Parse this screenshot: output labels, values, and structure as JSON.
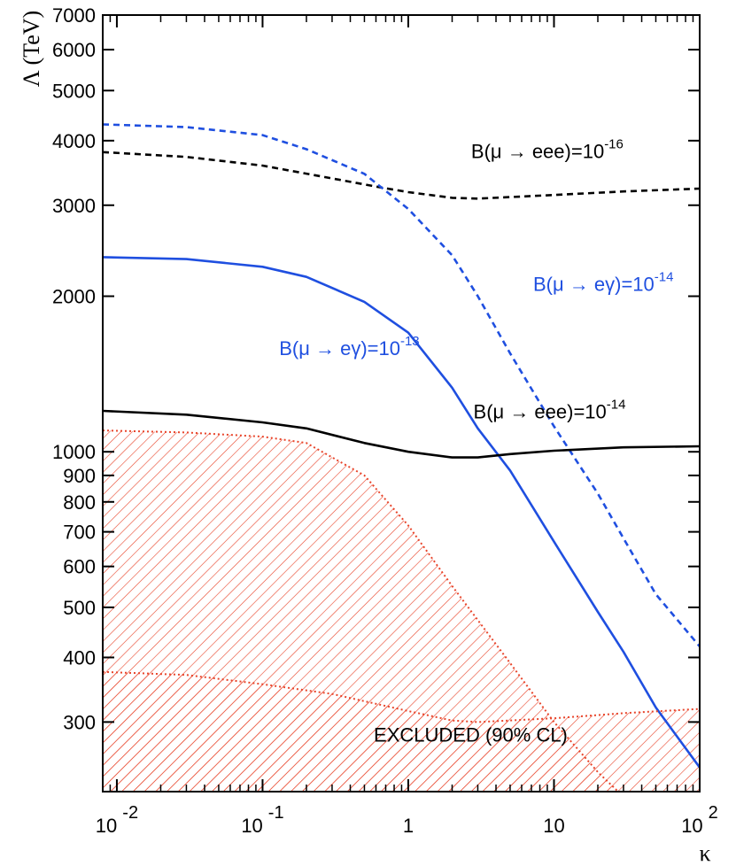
{
  "chart_data": {
    "type": "line",
    "xlabel": "κ",
    "ylabel": "Λ (TeV)",
    "xscale": "log",
    "yscale": "log",
    "xlim": [
      0.008,
      100
    ],
    "ylim": [
      220,
      7000
    ],
    "grid": false,
    "x_ticks": [
      {
        "value": 0.01,
        "base": "10",
        "exp": "-2"
      },
      {
        "value": 0.1,
        "base": "10",
        "exp": "-1"
      },
      {
        "value": 1,
        "base": "1",
        "exp": ""
      },
      {
        "value": 10,
        "base": "10",
        "exp": ""
      },
      {
        "value": 100,
        "base": "10",
        "exp": "2"
      }
    ],
    "y_ticks": [
      {
        "value": 300,
        "label": "300"
      },
      {
        "value": 400,
        "label": "400"
      },
      {
        "value": 500,
        "label": "500"
      },
      {
        "value": 600,
        "label": "600"
      },
      {
        "value": 700,
        "label": "700"
      },
      {
        "value": 800,
        "label": "800"
      },
      {
        "value": 900,
        "label": "900"
      },
      {
        "value": 1000,
        "label": "1000"
      },
      {
        "value": 2000,
        "label": "2000"
      },
      {
        "value": 3000,
        "label": "3000"
      },
      {
        "value": 4000,
        "label": "4000"
      },
      {
        "value": 5000,
        "label": "5000"
      },
      {
        "value": 6000,
        "label": "6000"
      },
      {
        "value": 7000,
        "label": "7000"
      }
    ],
    "series": [
      {
        "name": "B(μ → eee)=10⁻¹⁶",
        "color": "#000000",
        "style": "dashed",
        "points": [
          [
            0.008,
            3800
          ],
          [
            0.03,
            3720
          ],
          [
            0.1,
            3580
          ],
          [
            0.3,
            3380
          ],
          [
            0.6,
            3260
          ],
          [
            1,
            3180
          ],
          [
            2,
            3100
          ],
          [
            3,
            3090
          ],
          [
            10,
            3140
          ],
          [
            30,
            3190
          ],
          [
            100,
            3230
          ]
        ]
      },
      {
        "name": "B(μ → eγ)=10⁻¹⁴",
        "color": "#1f4fe0",
        "style": "dashed",
        "points": [
          [
            0.008,
            4300
          ],
          [
            0.03,
            4250
          ],
          [
            0.1,
            4100
          ],
          [
            0.2,
            3850
          ],
          [
            0.5,
            3450
          ],
          [
            1,
            2950
          ],
          [
            2,
            2400
          ],
          [
            3,
            2000
          ],
          [
            5,
            1550
          ],
          [
            10,
            1120
          ],
          [
            20,
            830
          ],
          [
            30,
            680
          ],
          [
            50,
            530
          ],
          [
            100,
            420
          ]
        ]
      },
      {
        "name": "B(μ → eγ)=10⁻¹³",
        "color": "#1f4fe0",
        "style": "solid",
        "points": [
          [
            0.008,
            2380
          ],
          [
            0.03,
            2360
          ],
          [
            0.1,
            2280
          ],
          [
            0.2,
            2180
          ],
          [
            0.5,
            1950
          ],
          [
            1,
            1700
          ],
          [
            2,
            1330
          ],
          [
            3,
            1110
          ],
          [
            5,
            920
          ],
          [
            10,
            670
          ],
          [
            20,
            490
          ],
          [
            30,
            410
          ],
          [
            50,
            320
          ],
          [
            100,
            245
          ]
        ]
      },
      {
        "name": "B(μ → eee)=10⁻¹⁴",
        "color": "#000000",
        "style": "solid",
        "points": [
          [
            0.008,
            1200
          ],
          [
            0.03,
            1180
          ],
          [
            0.1,
            1140
          ],
          [
            0.2,
            1110
          ],
          [
            0.5,
            1040
          ],
          [
            1,
            1000
          ],
          [
            2,
            975
          ],
          [
            3,
            975
          ],
          [
            5,
            990
          ],
          [
            10,
            1005
          ],
          [
            30,
            1020
          ],
          [
            100,
            1025
          ]
        ]
      },
      {
        "name": "excluded-boundary-upper",
        "color": "#e8442a",
        "style": "dotted",
        "points": [
          [
            0.008,
            1100
          ],
          [
            0.03,
            1090
          ],
          [
            0.1,
            1070
          ],
          [
            0.2,
            1040
          ],
          [
            0.5,
            900
          ],
          [
            1,
            720
          ],
          [
            2,
            550
          ],
          [
            5,
            390
          ],
          [
            10,
            300
          ],
          [
            20,
            240
          ],
          [
            30,
            215
          ]
        ]
      },
      {
        "name": "excluded-boundary-lower",
        "color": "#e8442a",
        "style": "dotted",
        "points": [
          [
            0.008,
            375
          ],
          [
            0.03,
            370
          ],
          [
            0.1,
            355
          ],
          [
            0.3,
            340
          ],
          [
            1,
            315
          ],
          [
            2,
            302
          ],
          [
            3,
            300
          ],
          [
            10,
            305
          ],
          [
            30,
            312
          ],
          [
            100,
            318
          ]
        ]
      }
    ],
    "annotations": [
      {
        "id": "eee16",
        "text": "B(μ → eee)=10",
        "sup": "-16",
        "color": "#000000",
        "x": 2.7,
        "y": 3700
      },
      {
        "id": "eg14",
        "text": "B(μ → eγ)=10",
        "sup": "-14",
        "color": "#1f4fe0",
        "x": 7.2,
        "y": 2050
      },
      {
        "id": "eg13",
        "text": "B(μ → eγ)=10",
        "sup": "-13",
        "color": "#1f4fe0",
        "x": 0.13,
        "y": 1540
      },
      {
        "id": "eee14",
        "text": "B(μ → eee)=10",
        "sup": "-14",
        "color": "#000000",
        "x": 2.8,
        "y": 1160
      },
      {
        "id": "excluded",
        "text": "EXCLUDED (90% CL)",
        "sup": "",
        "color": "#000000",
        "x": 0.58,
        "y": 275
      }
    ],
    "excluded_fill_color": "#e8442a"
  }
}
